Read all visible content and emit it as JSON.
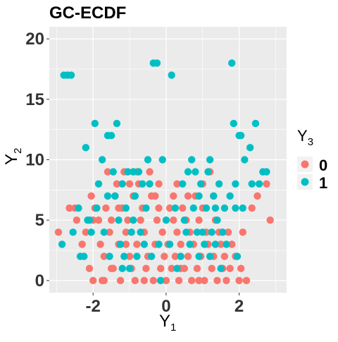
{
  "chart_data": {
    "type": "scatter",
    "title": "GC-ECDF",
    "xlabel": {
      "base": "Y",
      "sub": "1"
    },
    "ylabel": {
      "base": "Y",
      "sub": "2"
    },
    "xlim": [
      -3.2,
      3.3
    ],
    "ylim": [
      -1.0,
      21.0
    ],
    "x_ticks": [
      -2,
      0,
      2
    ],
    "x_tick_labels": [
      "-2",
      "0",
      "2"
    ],
    "y_ticks": [
      0,
      5,
      10,
      15,
      20
    ],
    "y_tick_labels": [
      "0",
      "5",
      "10",
      "15",
      "20"
    ],
    "grid": true,
    "panel_background": "#ebebeb",
    "grid_color": "#ffffff",
    "legend": {
      "title_base": "Y",
      "title_sub": "3",
      "placement": "right",
      "entries": [
        {
          "label": "0",
          "color": "#f8766d"
        },
        {
          "label": "1",
          "color": "#00bfc4"
        }
      ]
    },
    "series": [
      {
        "name": "0",
        "color": "#f8766d",
        "points": [
          [
            -2.95,
            4
          ],
          [
            -2.65,
            6
          ],
          [
            -2.5,
            6
          ],
          [
            -2.45,
            5
          ],
          [
            -2.3,
            3
          ],
          [
            -2.2,
            4
          ],
          [
            -2.1,
            1
          ],
          [
            -2.0,
            0
          ],
          [
            -2.0,
            5
          ],
          [
            -2.05,
            7
          ],
          [
            -1.85,
            5
          ],
          [
            -1.8,
            3
          ],
          [
            -1.75,
            0
          ],
          [
            -1.7,
            2
          ],
          [
            -1.65,
            6
          ],
          [
            -1.6,
            9
          ],
          [
            -1.55,
            4
          ],
          [
            -1.5,
            5
          ],
          [
            -1.45,
            1
          ],
          [
            -1.4,
            7
          ],
          [
            -1.35,
            8
          ],
          [
            -1.3,
            3
          ],
          [
            -1.25,
            0
          ],
          [
            -1.2,
            6
          ],
          [
            -1.15,
            9
          ],
          [
            -1.1,
            4
          ],
          [
            -1.05,
            5
          ],
          [
            -1.0,
            2
          ],
          [
            -0.95,
            1
          ],
          [
            -0.9,
            7
          ],
          [
            -0.85,
            0
          ],
          [
            -0.8,
            3
          ],
          [
            -0.75,
            8
          ],
          [
            -0.7,
            5
          ],
          [
            -0.65,
            6
          ],
          [
            -0.6,
            4
          ],
          [
            -0.55,
            1
          ],
          [
            -0.5,
            2
          ],
          [
            -0.45,
            9
          ],
          [
            -0.4,
            7
          ],
          [
            -0.35,
            0
          ],
          [
            -0.3,
            3
          ],
          [
            -0.25,
            5
          ],
          [
            -0.2,
            6
          ],
          [
            -0.15,
            1
          ],
          [
            -0.1,
            4
          ],
          [
            -0.05,
            2
          ],
          [
            0.0,
            0
          ],
          [
            0.05,
            3
          ],
          [
            0.1,
            6
          ],
          [
            0.15,
            1
          ],
          [
            0.2,
            5
          ],
          [
            0.25,
            2
          ],
          [
            0.3,
            4
          ],
          [
            0.35,
            0
          ],
          [
            0.4,
            3
          ],
          [
            0.45,
            6
          ],
          [
            0.5,
            1
          ],
          [
            0.55,
            5
          ],
          [
            0.6,
            2
          ],
          [
            0.65,
            4
          ],
          [
            0.7,
            0
          ],
          [
            0.75,
            3
          ],
          [
            0.8,
            7
          ],
          [
            0.85,
            1
          ],
          [
            0.9,
            5
          ],
          [
            0.95,
            2
          ],
          [
            1.0,
            6
          ],
          [
            1.05,
            0
          ],
          [
            1.1,
            4
          ],
          [
            1.15,
            3
          ],
          [
            1.2,
            9
          ],
          [
            1.25,
            1
          ],
          [
            1.3,
            2
          ],
          [
            1.35,
            5
          ],
          [
            1.4,
            0
          ],
          [
            1.45,
            4
          ],
          [
            1.5,
            3
          ],
          [
            1.55,
            1
          ],
          [
            1.6,
            2
          ],
          [
            1.65,
            0
          ],
          [
            1.7,
            4
          ],
          [
            1.75,
            1
          ],
          [
            1.8,
            3
          ],
          [
            1.9,
            2
          ],
          [
            2.0,
            0
          ],
          [
            2.05,
            1
          ],
          [
            2.1,
            4
          ],
          [
            2.2,
            0
          ],
          [
            2.35,
            6
          ],
          [
            2.5,
            7
          ],
          [
            2.75,
            8
          ],
          [
            2.85,
            5
          ],
          [
            -1.95,
            6
          ],
          [
            -1.5,
            1
          ],
          [
            -0.3,
            7
          ],
          [
            0.3,
            8
          ],
          [
            0.6,
            7
          ],
          [
            1.0,
            8
          ],
          [
            -0.8,
            9
          ],
          [
            -1.3,
            6
          ],
          [
            -1.0,
            8
          ],
          [
            -0.6,
            0
          ],
          [
            -0.2,
            8
          ],
          [
            0.2,
            7
          ],
          [
            0.4,
            1
          ],
          [
            0.9,
            0
          ],
          [
            1.3,
            7
          ],
          [
            -1.7,
            0
          ],
          [
            -1.1,
            3
          ]
        ]
      },
      {
        "name": "1",
        "color": "#00bfc4",
        "points": [
          [
            -2.85,
            3
          ],
          [
            -2.8,
            17
          ],
          [
            -2.7,
            17
          ],
          [
            -2.6,
            17
          ],
          [
            -2.55,
            4
          ],
          [
            -2.4,
            6
          ],
          [
            -2.35,
            2
          ],
          [
            -2.25,
            2
          ],
          [
            -2.2,
            11
          ],
          [
            -2.15,
            5
          ],
          [
            -2.05,
            4
          ],
          [
            -1.95,
            13
          ],
          [
            -1.9,
            6
          ],
          [
            -1.85,
            8
          ],
          [
            -1.75,
            10
          ],
          [
            -1.7,
            4
          ],
          [
            -1.6,
            12
          ],
          [
            -1.55,
            2
          ],
          [
            -1.5,
            12
          ],
          [
            -1.45,
            9
          ],
          [
            -1.4,
            7
          ],
          [
            -1.35,
            13
          ],
          [
            -1.3,
            5
          ],
          [
            -1.25,
            3
          ],
          [
            -1.2,
            8
          ],
          [
            -1.15,
            2
          ],
          [
            -1.1,
            6
          ],
          [
            -1.05,
            9
          ],
          [
            -1.0,
            1
          ],
          [
            -0.95,
            4
          ],
          [
            -0.9,
            9
          ],
          [
            -0.85,
            7
          ],
          [
            -0.8,
            2
          ],
          [
            -0.75,
            9
          ],
          [
            -0.7,
            4
          ],
          [
            -0.65,
            8
          ],
          [
            -0.6,
            3
          ],
          [
            -0.55,
            6
          ],
          [
            -0.5,
            10
          ],
          [
            -0.45,
            8
          ],
          [
            -0.35,
            18
          ],
          [
            -0.25,
            18
          ],
          [
            -0.1,
            10
          ],
          [
            0.0,
            5
          ],
          [
            0.1,
            3
          ],
          [
            0.15,
            17
          ],
          [
            0.25,
            6
          ],
          [
            0.45,
            8
          ],
          [
            0.5,
            5
          ],
          [
            0.55,
            4
          ],
          [
            0.6,
            9
          ],
          [
            0.65,
            3
          ],
          [
            0.7,
            10
          ],
          [
            0.75,
            6
          ],
          [
            0.8,
            9
          ],
          [
            0.85,
            4
          ],
          [
            0.9,
            7
          ],
          [
            0.95,
            8
          ],
          [
            1.05,
            3
          ],
          [
            1.1,
            6
          ],
          [
            1.15,
            9
          ],
          [
            1.2,
            10
          ],
          [
            1.25,
            4
          ],
          [
            1.3,
            7
          ],
          [
            1.35,
            6
          ],
          [
            1.4,
            5
          ],
          [
            1.45,
            8
          ],
          [
            1.5,
            1
          ],
          [
            1.55,
            4
          ],
          [
            1.65,
            3
          ],
          [
            1.75,
            7
          ],
          [
            1.8,
            18
          ],
          [
            1.85,
            13
          ],
          [
            1.9,
            8
          ],
          [
            1.95,
            2
          ],
          [
            2.0,
            12
          ],
          [
            2.05,
            12
          ],
          [
            2.1,
            6
          ],
          [
            2.15,
            10
          ],
          [
            2.3,
            11
          ],
          [
            2.35,
            8
          ],
          [
            2.45,
            13
          ],
          [
            2.55,
            8
          ],
          [
            2.65,
            9
          ],
          [
            2.75,
            9
          ],
          [
            1.9,
            6
          ],
          [
            1.2,
            2
          ],
          [
            -0.2,
            3
          ],
          [
            -0.9,
            5
          ],
          [
            -1.6,
            7
          ],
          [
            -2.1,
            5
          ],
          [
            0.3,
            1
          ],
          [
            0.9,
            2
          ],
          [
            -0.4,
            2
          ],
          [
            1.0,
            4
          ],
          [
            1.6,
            6
          ],
          [
            -1.2,
            1
          ],
          [
            0.4,
            2
          ],
          [
            1.35,
            3
          ],
          [
            -0.15,
            0
          ]
        ]
      }
    ]
  }
}
